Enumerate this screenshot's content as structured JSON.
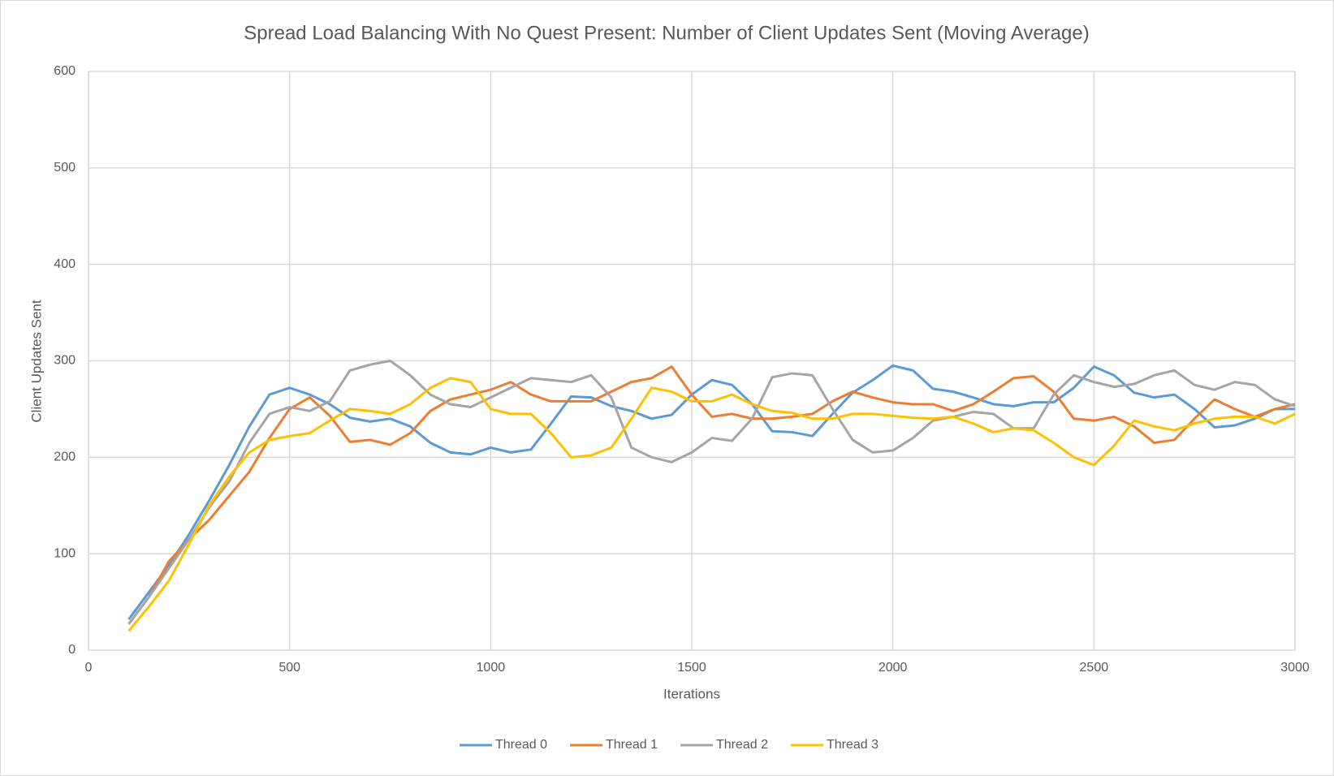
{
  "chart_data": {
    "type": "line",
    "title": "Spread Load Balancing With No Quest Present: Number of Client Updates Sent (Moving Average)",
    "xlabel": "Iterations",
    "ylabel": "Client Updates Sent",
    "x": [
      100,
      150,
      200,
      250,
      300,
      350,
      400,
      450,
      500,
      550,
      600,
      650,
      700,
      750,
      800,
      850,
      900,
      950,
      1000,
      1050,
      1100,
      1150,
      1200,
      1250,
      1300,
      1350,
      1400,
      1450,
      1500,
      1550,
      1600,
      1650,
      1700,
      1750,
      1800,
      1850,
      1900,
      1950,
      2000,
      2050,
      2100,
      2150,
      2200,
      2250,
      2300,
      2350,
      2400,
      2450,
      2500,
      2550,
      2600,
      2650,
      2700,
      2750,
      2800,
      2850,
      2900,
      2950,
      3000
    ],
    "series": [
      {
        "name": "Thread 0",
        "color": "#5b9bd5",
        "values": [
          32,
          60,
          88,
          120,
          155,
          192,
          232,
          265,
          272,
          265,
          255,
          241,
          237,
          240,
          232,
          215,
          205,
          203,
          210,
          205,
          208,
          235,
          263,
          262,
          253,
          248,
          240,
          244,
          265,
          280,
          275,
          255,
          227,
          226,
          222,
          245,
          267,
          280,
          295,
          290,
          271,
          268,
          262,
          255,
          253,
          257,
          257,
          272,
          294,
          285,
          267,
          262,
          265,
          250,
          231,
          233,
          240,
          250,
          250
        ]
      },
      {
        "name": "Thread 1",
        "color": "#ed7d31",
        "values": [
          27,
          55,
          92,
          115,
          135,
          160,
          185,
          220,
          250,
          262,
          243,
          216,
          218,
          213,
          225,
          248,
          260,
          265,
          270,
          278,
          265,
          258,
          258,
          258,
          268,
          278,
          282,
          294,
          265,
          242,
          245,
          240,
          240,
          242,
          245,
          258,
          268,
          262,
          257,
          255,
          255,
          248,
          255,
          268,
          282,
          284,
          268,
          240,
          238,
          242,
          232,
          215,
          218,
          240,
          260,
          250,
          242,
          250,
          255
        ]
      },
      {
        "name": "Thread 2",
        "color": "#a5a5a5",
        "values": [
          27,
          55,
          85,
          115,
          148,
          175,
          215,
          245,
          252,
          248,
          258,
          290,
          296,
          300,
          285,
          265,
          255,
          252,
          262,
          272,
          282,
          280,
          278,
          285,
          262,
          210,
          200,
          195,
          205,
          220,
          217,
          240,
          283,
          287,
          285,
          250,
          218,
          205,
          207,
          220,
          238,
          242,
          247,
          245,
          230,
          230,
          265,
          285,
          278,
          273,
          276,
          285,
          290,
          275,
          270,
          278,
          275,
          260,
          253
        ]
      },
      {
        "name": "Thread 3",
        "color": "#ffc000",
        "values": [
          20,
          45,
          72,
          110,
          150,
          180,
          205,
          218,
          222,
          225,
          238,
          250,
          248,
          245,
          255,
          272,
          282,
          278,
          250,
          245,
          245,
          225,
          200,
          202,
          210,
          240,
          272,
          268,
          258,
          258,
          265,
          255,
          248,
          246,
          240,
          240,
          245,
          245,
          243,
          241,
          240,
          242,
          235,
          226,
          230,
          228,
          215,
          200,
          192,
          212,
          238,
          232,
          228,
          235,
          240,
          242,
          242,
          235,
          245
        ]
      }
    ],
    "xlim": [
      0,
      3000
    ],
    "xticks": [
      0,
      500,
      1000,
      1500,
      2000,
      2500,
      3000
    ],
    "ylim": [
      0,
      600
    ],
    "yticks": [
      0,
      100,
      200,
      300,
      400,
      500,
      600
    ],
    "grid": true,
    "legend": "bottom"
  }
}
